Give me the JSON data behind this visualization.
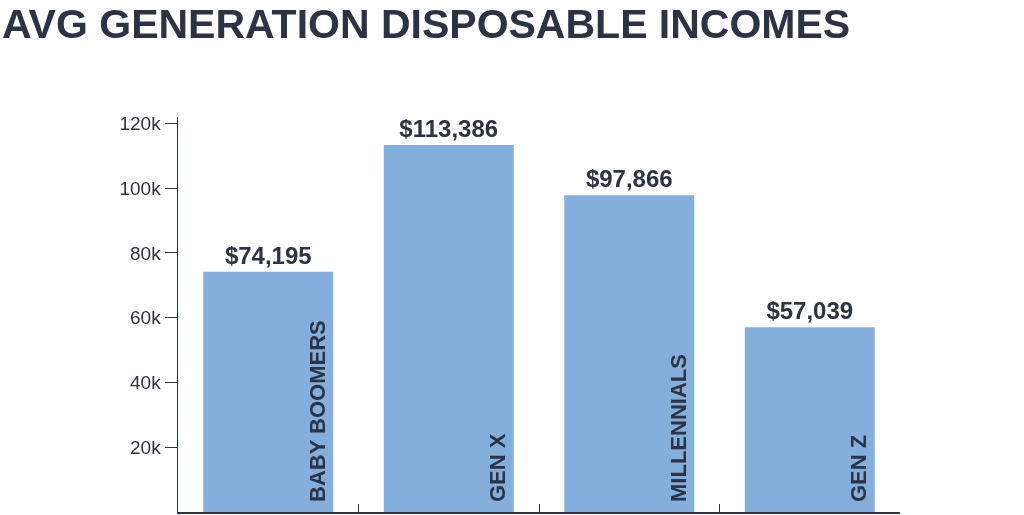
{
  "chart_data": {
    "type": "bar",
    "title": "AVG GENERATION DISPOSABLE INCOMES",
    "categories": [
      "BABY BOOMERS",
      "GEN X",
      "MILLENNIALS",
      "GEN Z"
    ],
    "values": [
      74195,
      113386,
      97866,
      57039
    ],
    "value_labels": [
      "$74,195",
      "$113,386",
      "$97,866",
      "$57,039"
    ],
    "color": "#84aedb",
    "ylim": [
      0,
      122000
    ],
    "yticks": [
      {
        "value": 20000,
        "label": "20k"
      },
      {
        "value": 40000,
        "label": "40k"
      },
      {
        "value": 60000,
        "label": "60k"
      },
      {
        "value": 80000,
        "label": "80k"
      },
      {
        "value": 100000,
        "label": "100k"
      },
      {
        "value": 120000,
        "label": "120k"
      }
    ]
  }
}
